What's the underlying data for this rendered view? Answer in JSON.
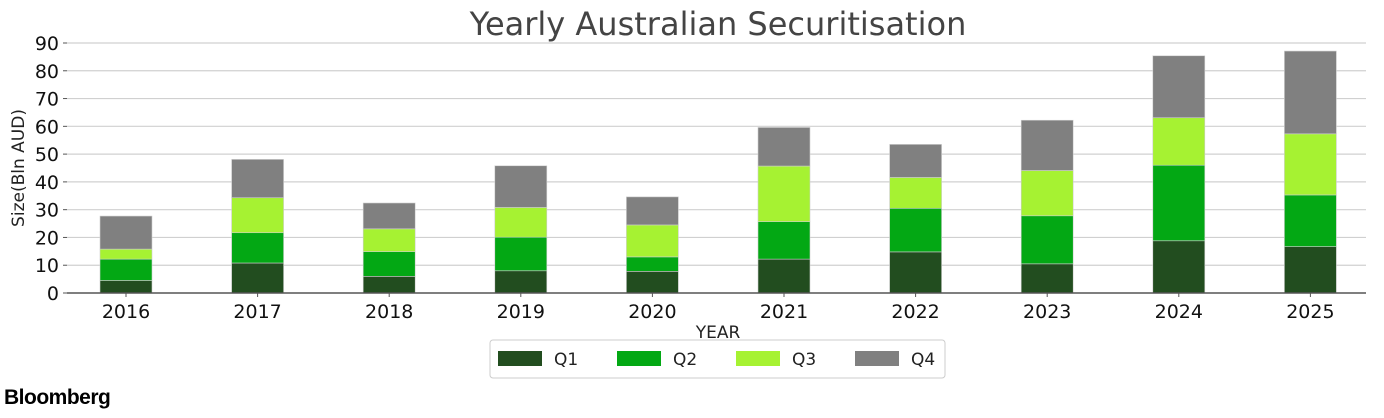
{
  "chart_data": {
    "type": "bar",
    "stacked": true,
    "title": "Yearly Australian Securitisation",
    "xlabel": "YEAR",
    "ylabel": "Size(Bln AUD)",
    "ylim": [
      0,
      90
    ],
    "yticks": [
      0,
      10,
      20,
      30,
      40,
      50,
      60,
      70,
      80,
      90
    ],
    "grid": true,
    "legend_position": "bottom-center",
    "categories": [
      "2016",
      "2017",
      "2018",
      "2019",
      "2020",
      "2021",
      "2022",
      "2023",
      "2024",
      "2025"
    ],
    "series": [
      {
        "name": "Q1",
        "color": "#224d1f",
        "values": [
          4.5,
          10.8,
          6.0,
          8.0,
          7.8,
          12.2,
          14.8,
          10.5,
          18.8,
          16.7
        ]
      },
      {
        "name": "Q2",
        "color": "#03a814",
        "values": [
          7.7,
          10.9,
          8.9,
          12.1,
          5.2,
          13.5,
          15.7,
          17.3,
          27.2,
          18.6
        ]
      },
      {
        "name": "Q3",
        "color": "#a6f232",
        "values": [
          3.6,
          12.6,
          8.2,
          10.7,
          11.5,
          20.0,
          11.1,
          16.3,
          17.1,
          22.0
        ]
      },
      {
        "name": "Q4",
        "color": "#808080",
        "values": [
          11.9,
          13.8,
          9.3,
          15.0,
          10.1,
          13.9,
          11.9,
          18.1,
          22.3,
          29.8
        ]
      }
    ]
  },
  "brand": "Bloomberg"
}
